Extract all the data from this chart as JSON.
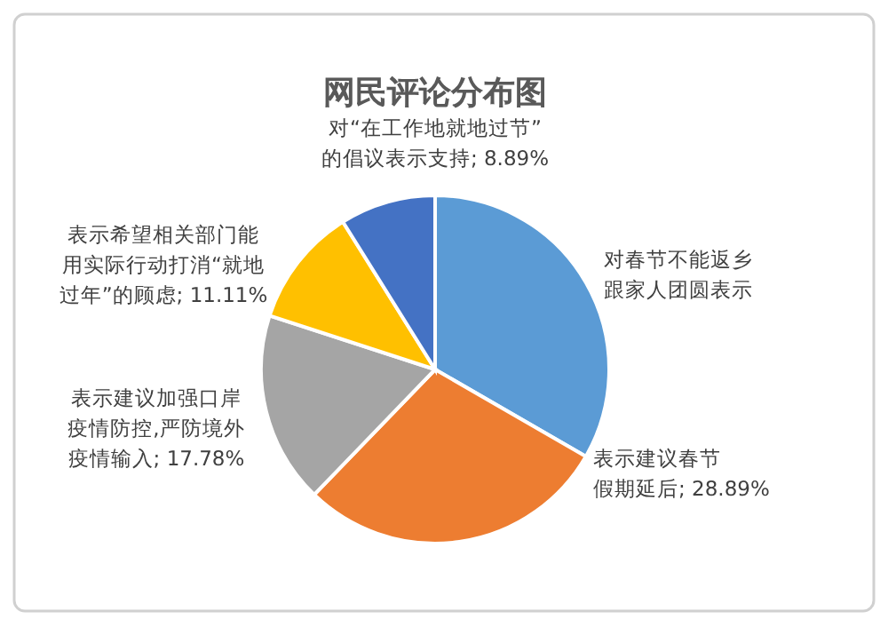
{
  "chart_data": {
    "type": "pie",
    "title": "网民评论分布图",
    "categories": [
      "对春节不能返乡跟家人团圆表示",
      "表示建议春节假期延后",
      "表示建议加强口岸疫情防控,严防境外疫情输入",
      "表示希望相关部门能用实际行动打消“就地过年”的顾虑",
      "对“在工作地就地过节”的倡议表示支持"
    ],
    "values": [
      33.33,
      28.89,
      17.78,
      11.11,
      8.89
    ],
    "value_labels": [
      null,
      "28.89%",
      "17.78%",
      "11.11%",
      "8.89%"
    ],
    "colors": [
      "#5b9bd5",
      "#ed7d31",
      "#a5a5a5",
      "#ffc000",
      "#4472c4"
    ]
  }
}
